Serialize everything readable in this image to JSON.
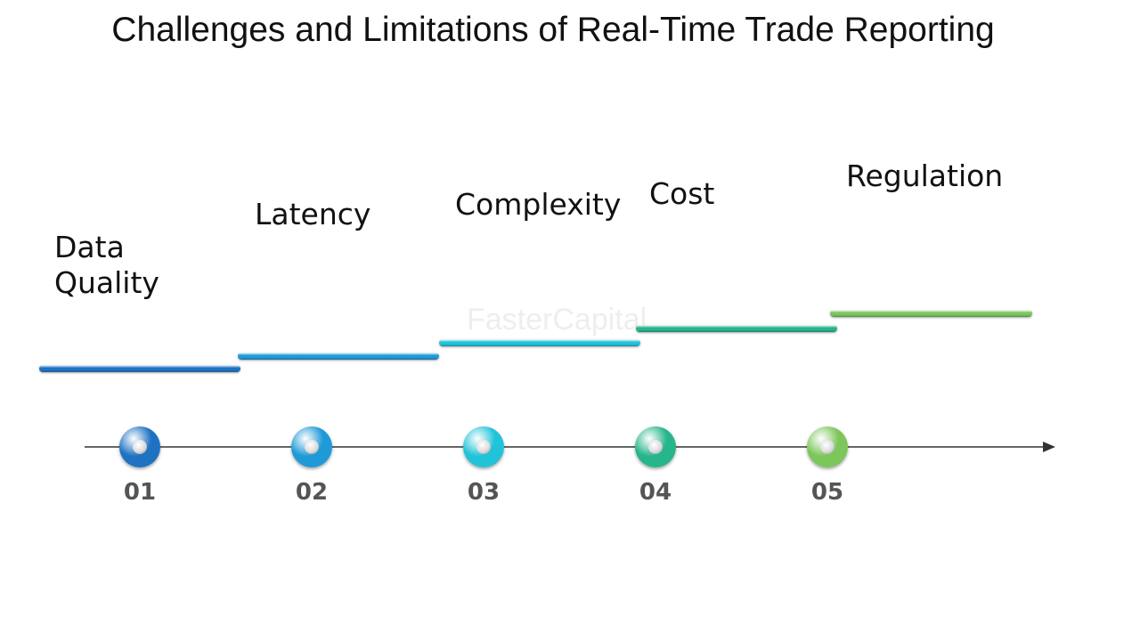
{
  "title": "Challenges and Limitations of Real-Time Trade Reporting",
  "watermark": "FasterCapital",
  "steps": [
    {
      "number": "01",
      "label_lines": [
        "Data",
        "Quality"
      ],
      "color": "#1f72c2"
    },
    {
      "number": "02",
      "label_lines": [
        "Latency"
      ],
      "color": "#1f9ad6"
    },
    {
      "number": "03",
      "label_lines": [
        "Complexity"
      ],
      "color": "#22c3d9"
    },
    {
      "number": "04",
      "label_lines": [
        "Cost"
      ],
      "color": "#27b58c"
    },
    {
      "number": "05",
      "label_lines": [
        "Regulation"
      ],
      "color": "#7cc65a"
    }
  ]
}
